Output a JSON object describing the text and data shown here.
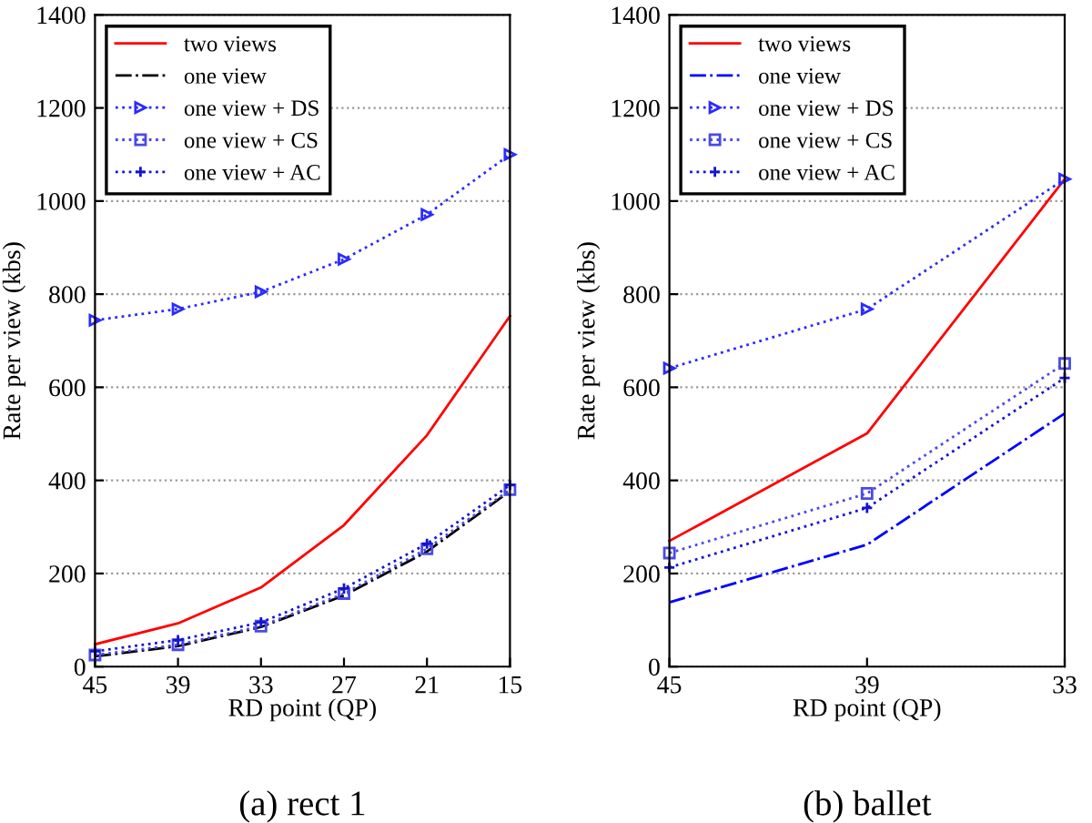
{
  "chart_data": [
    {
      "type": "line",
      "title": "(a) rect 1",
      "xlabel": "RD point (QP)",
      "ylabel": "Rate per view (kbs)",
      "x": [
        45,
        39,
        33,
        27,
        21,
        15
      ],
      "xlim": [
        45,
        15
      ],
      "xticks": [
        45,
        39,
        33,
        27,
        21,
        15
      ],
      "ylim": [
        0,
        1400
      ],
      "yticks": [
        0,
        200,
        400,
        600,
        800,
        1000,
        1200,
        1400
      ],
      "grid": "y",
      "legend": "top left",
      "series": [
        {
          "name": "two views",
          "color": "#ff0000",
          "line_style": "solid",
          "marker": "none",
          "values": [
            48,
            93,
            170,
            304,
            497,
            753
          ]
        },
        {
          "name": "one view",
          "color": "#000000",
          "line_style": "dashdot",
          "marker": "none",
          "values": [
            22,
            44,
            85,
            153,
            247,
            377
          ]
        },
        {
          "name": "one view + DS",
          "color": "#2a2aff",
          "line_style": "dotted",
          "marker": "triangle",
          "values": [
            744,
            768,
            805,
            875,
            971,
            1100
          ]
        },
        {
          "name": "one view + CS",
          "color": "#4a4ae8",
          "line_style": "dotted",
          "marker": "square",
          "values": [
            25,
            47,
            87,
            157,
            253,
            380
          ]
        },
        {
          "name": "one view + AC",
          "color": "#1414d0",
          "line_style": "dotted",
          "marker": "cross",
          "values": [
            33,
            57,
            95,
            168,
            264,
            390
          ]
        }
      ]
    },
    {
      "type": "line",
      "title": "(b) ballet",
      "xlabel": "RD point (QP)",
      "ylabel": "Rate per view (kbs)",
      "x": [
        45,
        39,
        33
      ],
      "xlim": [
        45,
        33
      ],
      "xticks": [
        45,
        39,
        33
      ],
      "ylim": [
        0,
        1400
      ],
      "yticks": [
        0,
        200,
        400,
        600,
        800,
        1000,
        1200,
        1400
      ],
      "grid": "y",
      "legend": "top left",
      "series": [
        {
          "name": "two views",
          "color": "#ff0000",
          "line_style": "solid",
          "marker": "none",
          "values": [
            270,
            501,
            1047
          ]
        },
        {
          "name": "one view",
          "color": "#0000ff",
          "line_style": "dashdot",
          "marker": "none",
          "values": [
            138,
            262,
            544
          ]
        },
        {
          "name": "one view + DS",
          "color": "#2a2aff",
          "line_style": "dotted",
          "marker": "triangle",
          "values": [
            641,
            768,
            1047
          ]
        },
        {
          "name": "one view + CS",
          "color": "#4a4ae8",
          "line_style": "dotted",
          "marker": "square",
          "values": [
            244,
            372,
            651
          ]
        },
        {
          "name": "one view + AC",
          "color": "#1414d0",
          "line_style": "dotted",
          "marker": "cross",
          "values": [
            213,
            341,
            620
          ]
        }
      ]
    }
  ]
}
